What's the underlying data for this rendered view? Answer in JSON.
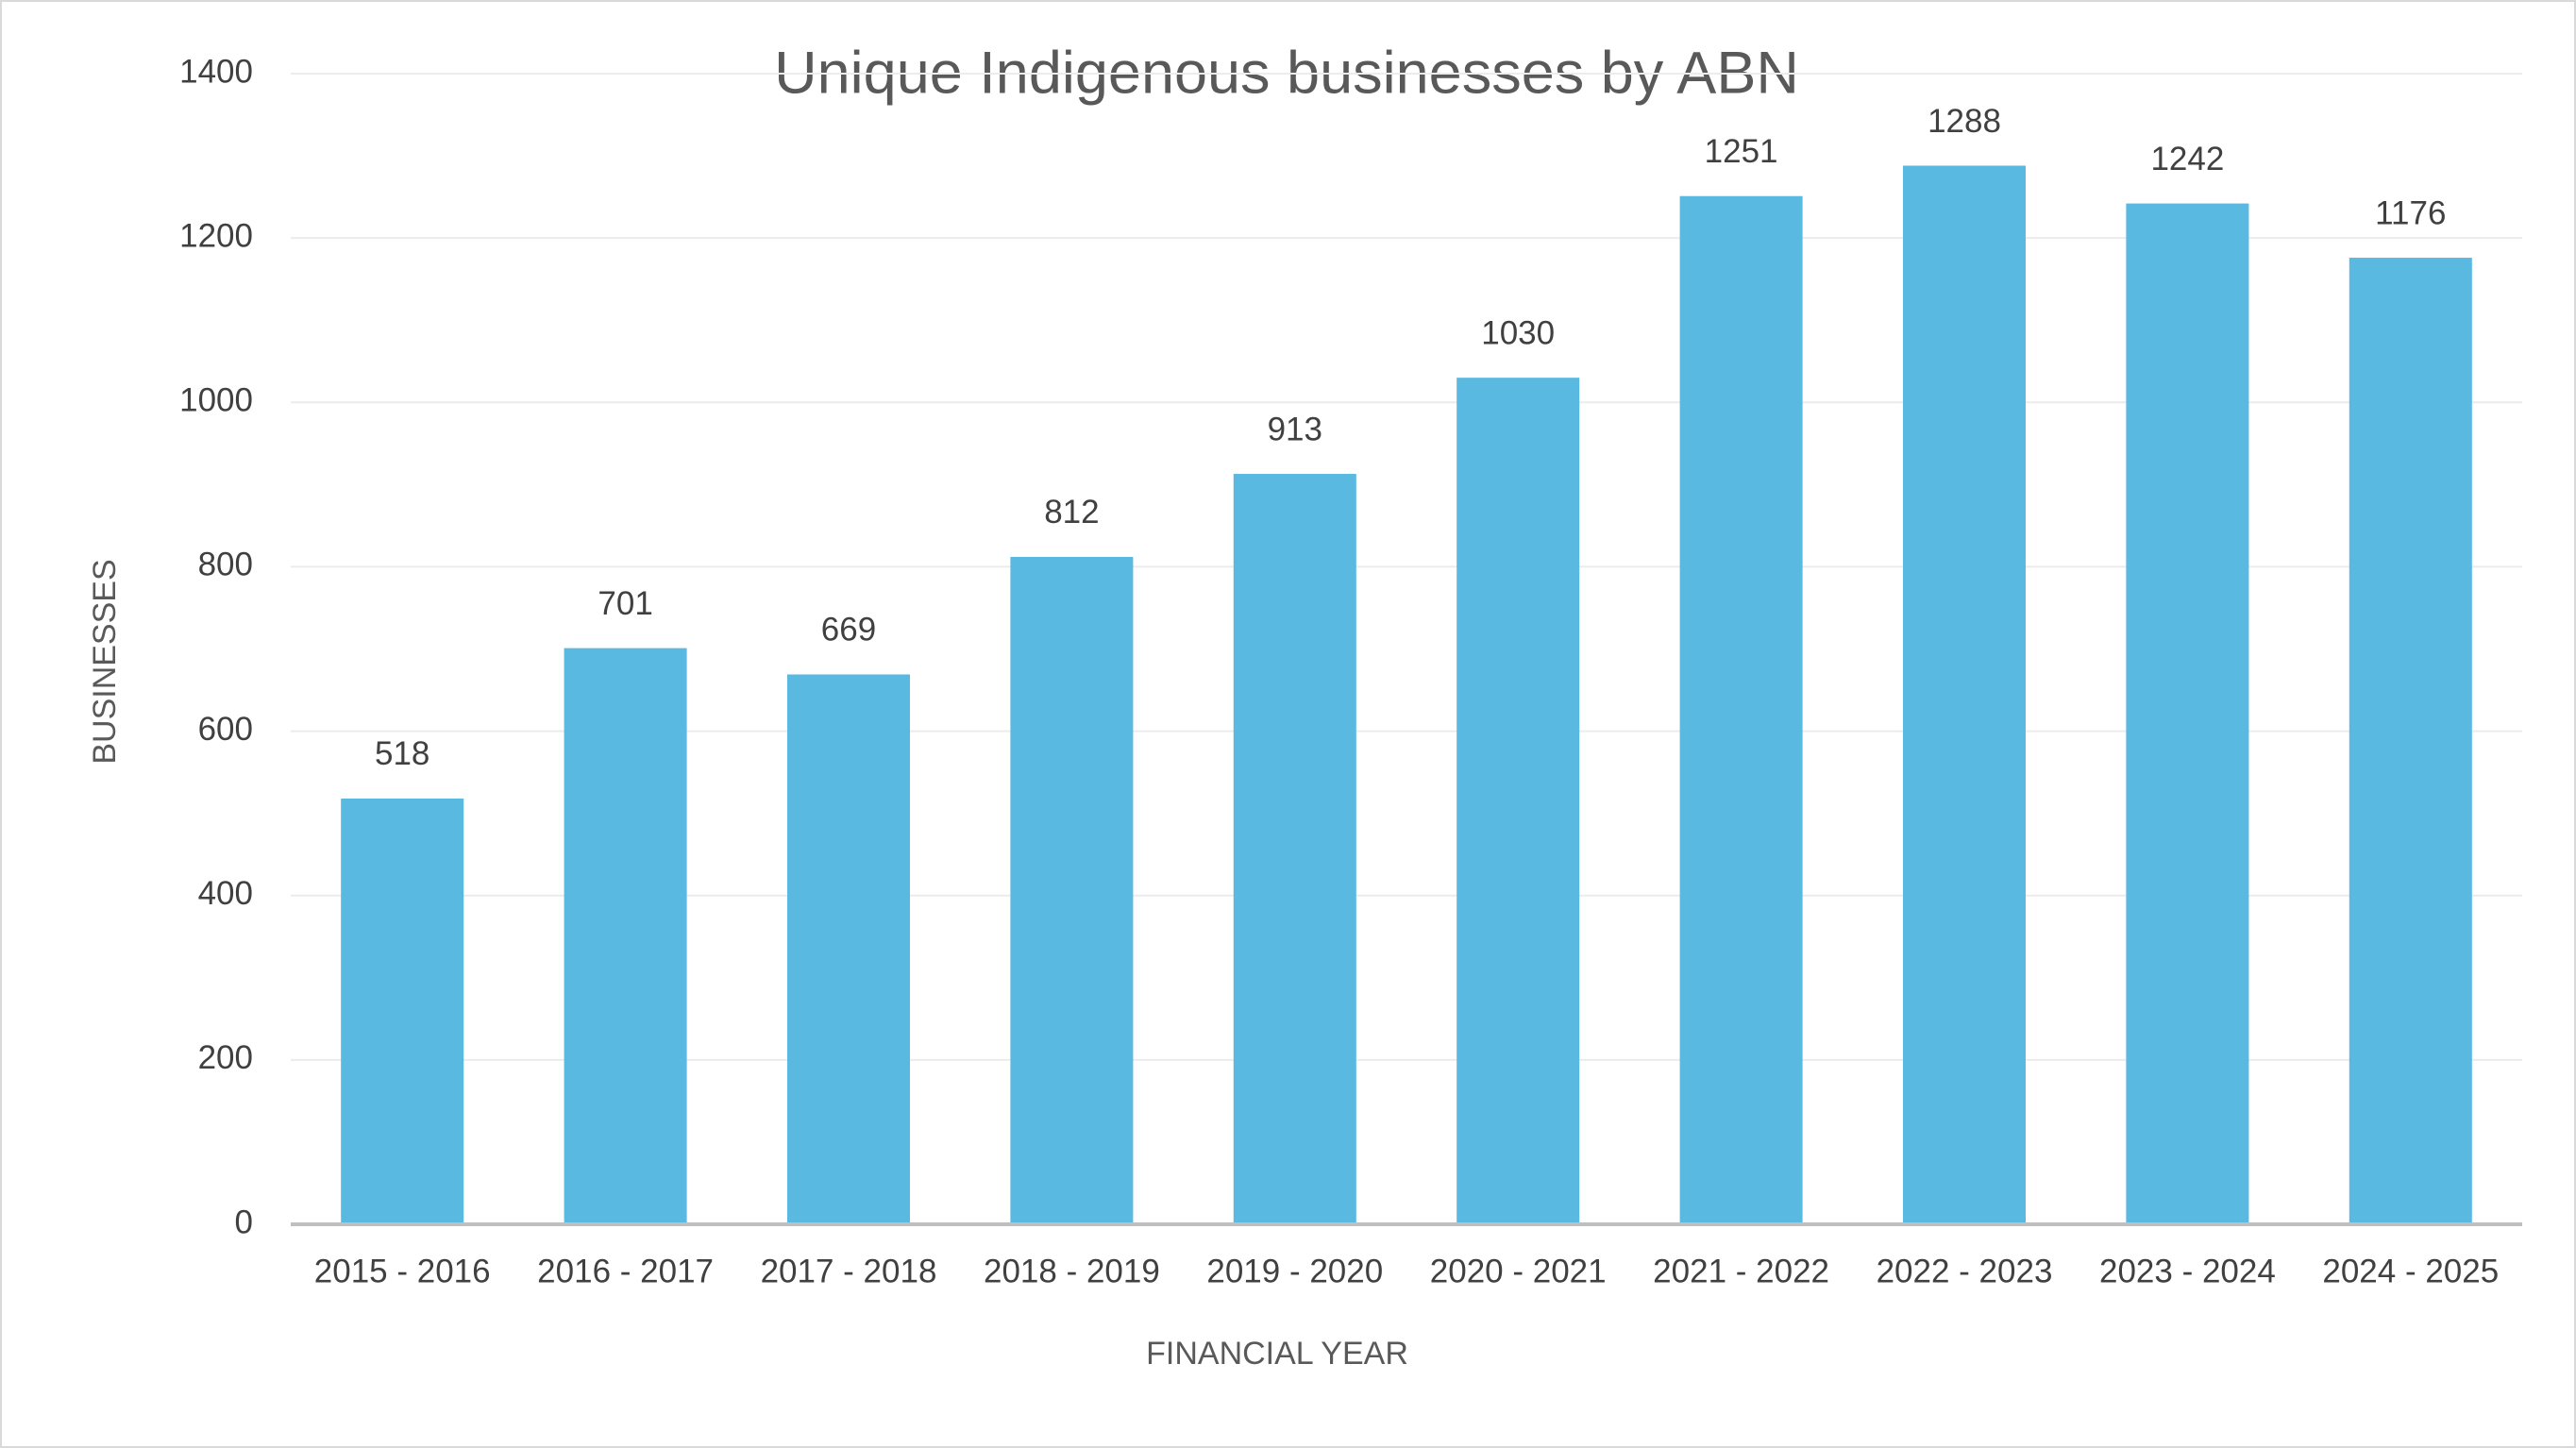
{
  "chart_data": {
    "type": "bar",
    "title": "Unique Indigenous businesses by ABN",
    "x_label": "FINANCIAL YEAR",
    "y_label": "BUSINESSES",
    "categories": [
      "2015 - 2016",
      "2016 - 2017",
      "2017 - 2018",
      "2018 - 2019",
      "2019 - 2020",
      "2020 - 2021",
      "2021 - 2022",
      "2022 - 2023",
      "2023 - 2024",
      "2024 - 2025"
    ],
    "values": [
      518,
      701,
      669,
      812,
      913,
      1030,
      1251,
      1288,
      1242,
      1176
    ],
    "color": "#5ab9e0",
    "ylim": [
      0,
      1400
    ],
    "yticks": [
      0,
      200,
      400,
      600,
      800,
      1000,
      1200,
      1400
    ],
    "grid": true
  }
}
